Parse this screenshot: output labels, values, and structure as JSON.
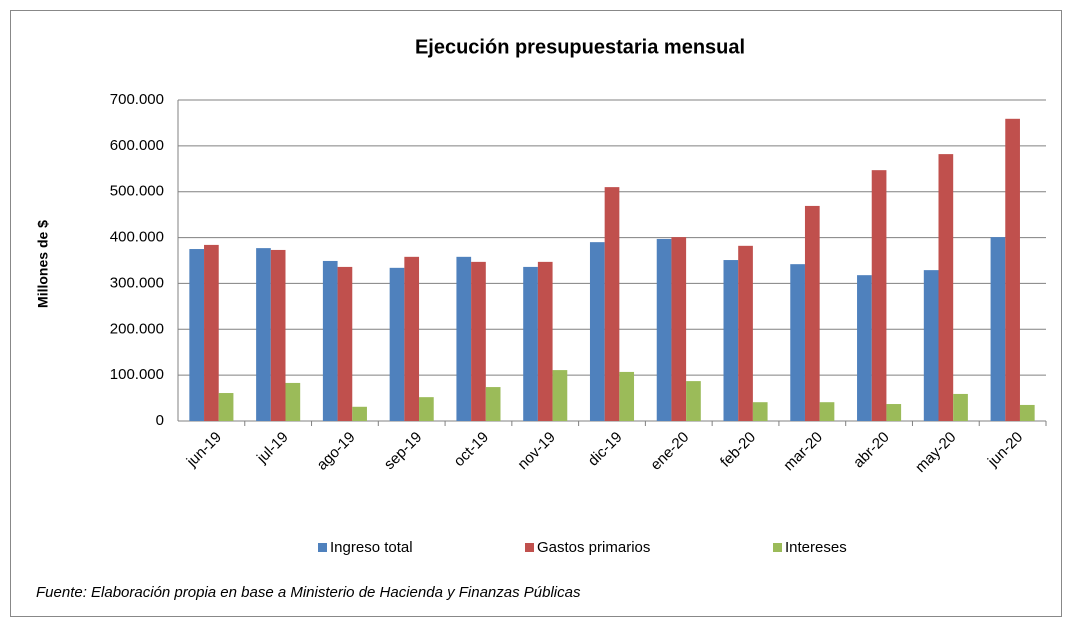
{
  "chart_data": {
    "type": "bar",
    "title": "Ejecución presupuestaria  mensual",
    "y_label": "Millones de $",
    "source": "Fuente: Elaboración propia en base a Ministerio de Hacienda y Finanzas Públicas",
    "categories": [
      "jun-19",
      "jul-19",
      "ago-19",
      "sep-19",
      "oct-19",
      "nov-19",
      "dic-19",
      "ene-20",
      "feb-20",
      "mar-20",
      "abr-20",
      "may-20",
      "jun-20"
    ],
    "series": [
      {
        "name": "Ingreso total",
        "color": "#4f81bd",
        "values": [
          375000,
          377000,
          349000,
          334000,
          358000,
          336000,
          390000,
          397000,
          351000,
          342000,
          318000,
          329000,
          401000
        ]
      },
      {
        "name": "Gastos primarios",
        "color": "#c0504d",
        "values": [
          384000,
          373000,
          336000,
          358000,
          347000,
          347000,
          510000,
          401000,
          382000,
          469000,
          547000,
          582000,
          659000
        ]
      },
      {
        "name": "Intereses",
        "color": "#9bbb59",
        "values": [
          61000,
          83000,
          31000,
          52000,
          74000,
          111000,
          107000,
          87000,
          41000,
          41000,
          37000,
          59000,
          35000
        ]
      }
    ],
    "ylim": [
      0,
      700000
    ],
    "yticks": [
      0,
      {
        "value": 100000,
        "label": "100.000"
      },
      {
        "value": 200000,
        "label": "200.000"
      },
      {
        "value": 300000,
        "label": "300.000"
      },
      {
        "value": 400000,
        "label": "400.000"
      },
      {
        "value": 500000,
        "label": "500.000"
      },
      {
        "value": 600000,
        "label": "600.000"
      },
      {
        "value": 700000,
        "label": "700.000"
      }
    ],
    "grid": true,
    "legend": "bottom"
  }
}
